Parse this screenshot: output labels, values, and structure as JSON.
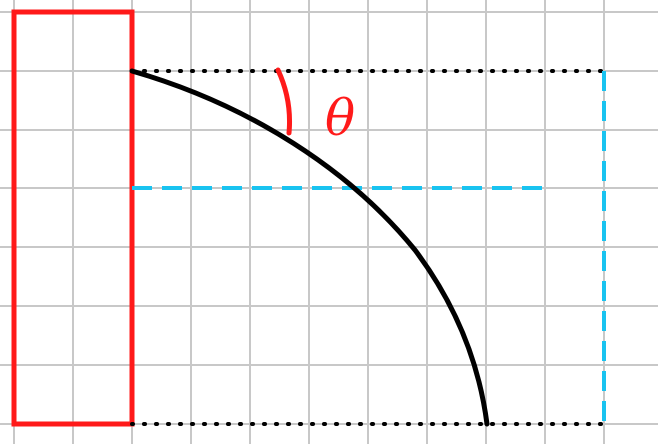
{
  "diagram": {
    "angle_label": "θ",
    "colors": {
      "grid": "#c8c8c8",
      "wall": "#ff1a1a",
      "trajectory": "#000000",
      "guide_dotted": "#000000",
      "guide_dashed": "#19c3f0",
      "angle_marker": "#ff1a1a"
    }
  }
}
